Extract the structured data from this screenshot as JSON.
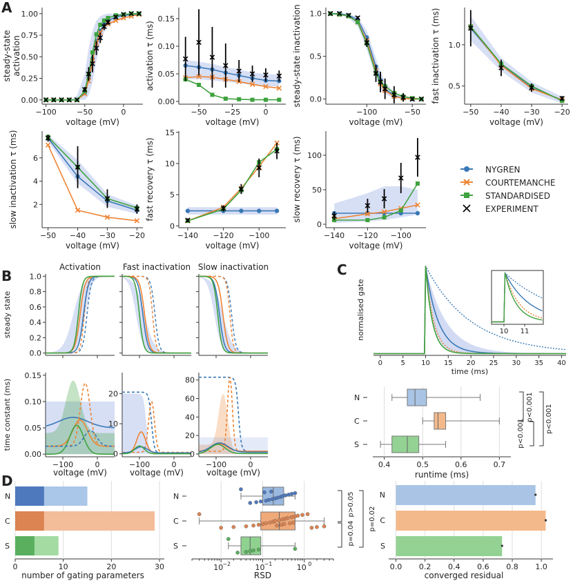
{
  "panel_letters": [
    "A",
    "B",
    "C",
    "D"
  ],
  "colors": {
    "nygren": "#3a78b5",
    "courtemanche": "#ee8434",
    "standardised": "#3ea23e",
    "experiment": "#000000"
  },
  "legend": {
    "items": [
      {
        "label": "NYGREN",
        "marker": "circle",
        "color": "#3a78b5"
      },
      {
        "label": "COURTEMANCHE",
        "marker": "x",
        "color": "#ee8434"
      },
      {
        "label": "STANDARDISED",
        "marker": "square",
        "color": "#3ea23e"
      },
      {
        "label": "EXPERIMENT",
        "marker": "x",
        "color": "#000000"
      }
    ]
  },
  "panelA": [
    {
      "id": "a1",
      "ylabel": "steady-state activation",
      "xlabel": "voltage (mV)",
      "xlim": [
        -105,
        25
      ],
      "ylim": [
        -0.05,
        1.07
      ],
      "xticks": [
        -100,
        -50,
        0
      ],
      "yticks": [
        0.0,
        0.25,
        0.5,
        0.75,
        1.0
      ],
      "ytick_labels": [
        "0.00",
        "0.25",
        "0.50",
        "0.75",
        "1.00"
      ],
      "x": [
        -100,
        -90,
        -80,
        -70,
        -60,
        -50,
        -45,
        -40,
        -35,
        -30,
        -25,
        -20,
        -10,
        0,
        10,
        20
      ],
      "series": {
        "nygren": [
          0.0,
          0.0,
          0.0,
          0.0,
          0.0,
          0.08,
          0.25,
          0.48,
          0.68,
          0.8,
          0.87,
          0.92,
          0.96,
          0.98,
          0.99,
          1.0
        ],
        "courtemanche": [
          0.0,
          0.0,
          0.0,
          0.0,
          0.0,
          0.07,
          0.22,
          0.45,
          0.66,
          0.78,
          0.85,
          0.88,
          0.92,
          0.95,
          0.97,
          0.99
        ],
        "standardised": [
          0.0,
          0.0,
          0.0,
          0.0,
          0.0,
          0.1,
          0.3,
          0.55,
          0.76,
          0.87,
          0.92,
          0.95,
          0.98,
          0.99,
          1.0,
          1.0
        ],
        "experiment": [
          0.0,
          0.0,
          0.0,
          0.0,
          0.0,
          0.12,
          0.3,
          0.42,
          0.6,
          0.72,
          0.85,
          0.9,
          0.96,
          0.99,
          1.0,
          1.0
        ]
      },
      "exp_err": [
        0,
        0,
        0,
        0,
        0,
        0.03,
        0.08,
        0.1,
        0.08,
        0.06,
        0.04,
        0.03,
        0.02,
        0.01,
        0.01,
        0.0
      ],
      "band": {
        "lo": [
          0,
          0,
          0,
          0,
          0,
          0.0,
          0.05,
          0.2,
          0.45,
          0.65,
          0.78,
          0.85,
          0.92,
          0.96,
          0.98,
          0.99
        ],
        "hi": [
          0,
          0,
          0,
          0,
          0.05,
          0.3,
          0.6,
          0.8,
          0.92,
          0.97,
          0.99,
          1.0,
          1.0,
          1.0,
          1.0,
          1.0
        ]
      }
    },
    {
      "id": "a2",
      "ylabel": "activation τ (ms)",
      "xlabel": "voltage (mV)",
      "xlim": [
        -65,
        15
      ],
      "ylim": [
        -0.005,
        0.17
      ],
      "xticks": [
        -50,
        -25,
        0
      ],
      "yticks": [
        0.0,
        0.05,
        0.1,
        0.15
      ],
      "ytick_labels": [
        "0.00",
        "0.05",
        "0.10",
        "0.15"
      ],
      "x": [
        -60,
        -50,
        -40,
        -30,
        -20,
        -10,
        0,
        10
      ],
      "series": {
        "nygren": [
          0.065,
          0.062,
          0.058,
          0.052,
          0.047,
          0.042,
          0.038,
          0.037
        ],
        "courtemanche": [
          0.043,
          0.045,
          0.044,
          0.04,
          0.036,
          0.031,
          0.027,
          0.024
        ],
        "standardised": [
          0.04,
          0.03,
          0.012,
          0.005,
          0.004,
          0.003,
          0.003,
          0.003
        ],
        "experiment": [
          0.077,
          0.107,
          0.08,
          0.065,
          0.055,
          0.05,
          0.048,
          0.046
        ]
      },
      "exp_err": [
        0.04,
        0.06,
        0.055,
        0.04,
        0.02,
        0.015,
        0.012,
        0.01
      ],
      "band": {
        "lo": [
          0.04,
          0.04,
          0.038,
          0.036,
          0.033,
          0.03,
          0.028,
          0.027
        ],
        "hi": [
          0.075,
          0.072,
          0.068,
          0.062,
          0.058,
          0.052,
          0.05,
          0.048
        ]
      }
    },
    {
      "id": "a3",
      "ylabel": "steady-state inactivation",
      "xlabel": "voltage (mV)",
      "xlim": [
        -145,
        -35
      ],
      "ylim": [
        -0.06,
        1.07
      ],
      "xticks": [
        -100,
        -50
      ],
      "yticks": [
        0.0,
        0.5,
        1.0
      ],
      "ytick_labels": [
        "0.0",
        "0.5",
        "1.0"
      ],
      "x": [
        -140,
        -130,
        -120,
        -110,
        -100,
        -90,
        -85,
        -80,
        -70,
        -60,
        -50,
        -40
      ],
      "series": {
        "nygren": [
          1.0,
          1.0,
          0.98,
          0.93,
          0.72,
          0.38,
          0.22,
          0.12,
          0.04,
          0.01,
          0.0,
          0.0
        ],
        "courtemanche": [
          1.0,
          0.99,
          0.97,
          0.9,
          0.68,
          0.33,
          0.18,
          0.1,
          0.03,
          0.01,
          0.0,
          0.0
        ],
        "standardised": [
          1.0,
          0.99,
          0.97,
          0.9,
          0.65,
          0.3,
          0.2,
          0.15,
          0.07,
          0.03,
          0.01,
          0.0
        ],
        "experiment": [
          1.0,
          1.0,
          0.98,
          0.95,
          0.66,
          0.3,
          0.2,
          0.12,
          0.05,
          0.02,
          0.0,
          0.0
        ]
      },
      "exp_err": [
        0,
        0,
        0.01,
        0.02,
        0.05,
        0.1,
        0.12,
        0.12,
        0.1,
        0.05,
        0.02,
        0.0
      ],
      "band": {
        "lo": [
          1.0,
          0.99,
          0.95,
          0.85,
          0.58,
          0.25,
          0.12,
          0.06,
          0.01,
          0.0,
          0.0,
          0.0
        ],
        "hi": [
          1.0,
          1.0,
          0.99,
          0.96,
          0.8,
          0.48,
          0.32,
          0.2,
          0.08,
          0.03,
          0.01,
          0.0
        ]
      }
    },
    {
      "id": "a4",
      "ylabel": "fast inactivation τ (ms)",
      "xlabel": "voltage (mV)",
      "xlim": [
        -52,
        -18
      ],
      "ylim": [
        0.28,
        1.45
      ],
      "xticks": [
        -50,
        -40,
        -30,
        -20
      ],
      "yticks": [
        0.5,
        1.0
      ],
      "ytick_labels": [
        "0.5",
        "1.0"
      ],
      "x": [
        -50,
        -40,
        -30,
        -20
      ],
      "series": {
        "nygren": [
          1.2,
          0.76,
          0.48,
          0.33
        ],
        "courtemanche": [
          1.22,
          0.75,
          0.47,
          0.33
        ],
        "standardised": [
          1.22,
          0.77,
          0.5,
          0.32
        ],
        "experiment": [
          1.2,
          0.72,
          0.48,
          0.35
        ]
      },
      "exp_err": [
        0.22,
        0.1,
        0.05,
        0.03
      ],
      "band": {
        "lo": [
          1.05,
          0.68,
          0.42,
          0.29
        ],
        "hi": [
          1.35,
          0.84,
          0.55,
          0.37
        ]
      }
    },
    {
      "id": "a5",
      "ylabel": "slow inactivation τ (ms)",
      "xlabel": "voltage (mV)",
      "xlim": [
        -52,
        -18
      ],
      "ylim": [
        0.0,
        8.3
      ],
      "xticks": [
        -50,
        -40,
        -30,
        -20
      ],
      "yticks": [
        2,
        4,
        6
      ],
      "ytick_labels": [
        "2",
        "4",
        "6"
      ],
      "x": [
        -50,
        -40,
        -30,
        -20
      ],
      "series": {
        "nygren": [
          7.7,
          4.4,
          2.3,
          1.5
        ],
        "courtemanche": [
          7.1,
          1.5,
          0.9,
          0.6
        ],
        "standardised": [
          7.8,
          5.2,
          2.5,
          1.7
        ],
        "experiment": [
          7.7,
          5.2,
          2.5,
          1.6
        ]
      },
      "exp_err": [
        0.3,
        1.8,
        0.8,
        0.4
      ],
      "band": {
        "lo": [
          7.4,
          3.8,
          1.8,
          1.2
        ],
        "hi": [
          8.0,
          5.8,
          2.9,
          1.9
        ]
      }
    },
    {
      "id": "a6",
      "ylabel": "fast recovery τ (ms)",
      "xlabel": "voltage (mV)",
      "xlim": [
        -145,
        -85
      ],
      "ylim": [
        -0.3,
        15.2
      ],
      "xticks": [
        -140,
        -120,
        -100
      ],
      "yticks": [
        0,
        5,
        10,
        15
      ],
      "ytick_labels": [
        "0",
        "5",
        "10",
        "15"
      ],
      "x": [
        -140,
        -120,
        -110,
        -100,
        -90
      ],
      "series": {
        "nygren": [
          2.4,
          2.4,
          2.4,
          2.4,
          2.4
        ],
        "courtemanche": [
          0.8,
          3.0,
          6.0,
          9.5,
          13.3
        ],
        "standardised": [
          0.8,
          2.7,
          5.7,
          10.2,
          12.3
        ],
        "experiment": [
          0.9,
          2.8,
          5.9,
          9.3,
          12.0
        ]
      },
      "exp_err": [
        0.3,
        0.5,
        0.8,
        1.5,
        1.3
      ],
      "band": {
        "lo": [
          1.8,
          1.8,
          1.8,
          1.8,
          1.8
        ],
        "hi": [
          3.0,
          3.0,
          3.0,
          3.0,
          3.0
        ]
      }
    },
    {
      "id": "a7",
      "ylabel": "slow recovery τ (ms)",
      "xlabel": "voltage (mV)",
      "xlim": [
        -145,
        -85
      ],
      "ylim": [
        -5,
        135
      ],
      "xticks": [
        -140,
        -120,
        -100
      ],
      "yticks": [
        0,
        50,
        100
      ],
      "ytick_labels": [
        "0",
        "50",
        "100"
      ],
      "x": [
        -140,
        -120,
        -110,
        -100,
        -90
      ],
      "series": {
        "nygren": [
          16,
          16,
          16,
          16,
          16
        ],
        "courtemanche": [
          8,
          15,
          18,
          23,
          28
        ],
        "standardised": [
          6,
          6,
          10,
          20,
          59
        ],
        "experiment": [
          12,
          27,
          37,
          67,
          97
        ]
      },
      "exp_err": [
        6,
        10,
        14,
        22,
        28
      ],
      "band": {
        "lo": [
          2,
          4,
          6,
          10,
          14
        ],
        "hi": [
          30,
          45,
          55,
          55,
          50
        ]
      }
    }
  ],
  "panelB": {
    "titles": [
      "Activation",
      "Fast inactivation",
      "Slow inactivation"
    ],
    "top_ylabel": "steady state",
    "bottom_ylabel": "time constant (ms)",
    "xlabel": "voltage (mV)",
    "xticks": [
      -100,
      0
    ],
    "xlim": [
      -150,
      50
    ],
    "top_yticks": [
      0.0,
      0.2,
      0.4,
      0.6,
      0.8,
      1.0
    ],
    "top_ytick_labels": [
      "0.0",
      "0.2",
      "0.4",
      "0.6",
      "0.8",
      "1.0"
    ],
    "bottom": [
      {
        "ylim": [
          -0.005,
          0.155
        ],
        "yticks": [
          0.0,
          0.05,
          0.1,
          0.15
        ],
        "ytick_labels": [
          "0.00",
          "0.05",
          "0.10",
          "0.15"
        ]
      },
      {
        "ylim": [
          -1,
          27
        ],
        "yticks": [
          0,
          10,
          20
        ],
        "ytick_labels": [
          "0",
          "10",
          "20"
        ]
      },
      {
        "ylim": [
          -3,
          88
        ],
        "yticks": [
          0,
          20,
          40,
          60,
          80
        ],
        "ytick_labels": [
          "0",
          "20",
          "40",
          "60",
          "80"
        ]
      }
    ],
    "steady_state_v_half": [
      {
        "nygren": -40,
        "courtemanche": -50,
        "standardised": -55,
        "courtemanche_dashed": -38,
        "nygren_dashed": -30
      },
      {
        "nygren": -90,
        "courtemanche": -85,
        "standardised": -100,
        "courtemanche_dashed": -62,
        "nygren_dashed": -55
      },
      {
        "nygren": -90,
        "courtemanche": -80,
        "standardised": -95,
        "courtemanche_dashed": -60,
        "nygren_dashed": -55
      }
    ]
  },
  "panelC": {
    "top": {
      "ylabel": "normalised gate",
      "xlabel": "time (ms)",
      "xlim": [
        -1.5,
        41
      ],
      "ylim": [
        -0.02,
        1.02
      ],
      "xticks": [
        0,
        5,
        10,
        15,
        20,
        25,
        30,
        35,
        40
      ],
      "inset": {
        "xticks": [
          10,
          11
        ],
        "xlim": [
          9.4,
          11.9
        ]
      }
    },
    "box": {
      "xlabel": "runtime (ms)",
      "xlim": [
        0.37,
        0.73
      ],
      "xticks": [
        0.4,
        0.5,
        0.6,
        0.7
      ],
      "xtick_labels": [
        "0.4",
        "0.5",
        "0.6",
        "0.7"
      ],
      "rows": [
        {
          "label": "N",
          "whisker_lo": 0.42,
          "q1": 0.46,
          "median": 0.48,
          "q3": 0.51,
          "whisker_hi": 0.65,
          "color": "#a9c4e4"
        },
        {
          "label": "C",
          "whisker_lo": 0.5,
          "q1": 0.53,
          "median": 0.54,
          "q3": 0.56,
          "whisker_hi": 0.7,
          "color": "#f4b98b"
        },
        {
          "label": "S",
          "whisker_lo": 0.39,
          "q1": 0.42,
          "median": 0.46,
          "q3": 0.49,
          "whisker_hi": 0.56,
          "color": "#93d293"
        }
      ],
      "significance": [
        "p<0.001",
        "p<0.001",
        "p<0.001"
      ]
    }
  },
  "panelD": {
    "params": {
      "xlabel": "number of gating parameters",
      "xlim": [
        0,
        31
      ],
      "xticks": [
        0,
        10,
        20,
        30
      ],
      "rows": [
        {
          "label": "N",
          "dark": 6,
          "total": 15,
          "dark_color": "#4f79bd",
          "light_color": "#aac6e8"
        },
        {
          "label": "C",
          "dark": 6,
          "total": 29,
          "dark_color": "#dc8452",
          "light_color": "#f3bd9a"
        },
        {
          "label": "S",
          "dark": 4,
          "total": 9,
          "dark_color": "#5aaf5e",
          "light_color": "#a3dba3"
        }
      ]
    },
    "rsd": {
      "xlabel": "RSD",
      "xlim_log": [
        -2.7,
        0.7
      ],
      "xtick_exp": [
        -2,
        -1,
        0
      ],
      "xtick_labels": [
        "10",
        "10",
        "10"
      ],
      "xtick_sup": [
        "−2",
        "−1",
        "0"
      ],
      "rows": [
        {
          "label": "N",
          "whisker_lo": 0.03,
          "q1": 0.1,
          "median": 0.18,
          "q3": 0.32,
          "whisker_hi": 0.6,
          "color": "#9bb9e0",
          "dot": "#4f79bd",
          "points": [
            0.03,
            0.05,
            0.07,
            0.09,
            0.12,
            0.14,
            0.17,
            0.2,
            0.23,
            0.27,
            0.3,
            0.35,
            0.42,
            0.5,
            0.6,
            0.11,
            0.16
          ]
        },
        {
          "label": "C",
          "whisker_lo": 0.003,
          "q1": 0.09,
          "median": 0.25,
          "q3": 0.6,
          "whisker_hi": 3.0,
          "color": "#f0a978",
          "dot": "#dc8452",
          "points": [
            0.003,
            0.01,
            0.02,
            0.04,
            0.06,
            0.08,
            0.1,
            0.12,
            0.15,
            0.18,
            0.2,
            0.25,
            0.3,
            0.35,
            0.4,
            0.5,
            0.6,
            0.7,
            0.9,
            1.2,
            1.5,
            2.0,
            3.0,
            0.22,
            0.28,
            0.33,
            0.45,
            0.55
          ]
        },
        {
          "label": "S",
          "whisker_lo": 0.015,
          "q1": 0.03,
          "median": 0.05,
          "q3": 0.09,
          "whisker_hi": 0.6,
          "color": "#8fd18f",
          "dot": "#5aaf5e",
          "points": [
            0.015,
            0.025,
            0.04,
            0.05,
            0.06,
            0.08,
            0.6
          ]
        }
      ],
      "significance": [
        "p>0.05",
        "p=0.04",
        "p=0.02"
      ]
    },
    "residual": {
      "xlabel": "converged residual",
      "xlim": [
        -0.05,
        1.08
      ],
      "xticks": [
        0.0,
        0.2,
        0.4,
        0.6,
        0.8,
        1.0
      ],
      "xtick_labels": [
        "0.0",
        "0.2",
        "0.4",
        "0.6",
        "0.8",
        "1.0"
      ],
      "rows": [
        {
          "label": "N",
          "value": 0.96,
          "color": "#a9c4e4"
        },
        {
          "label": "C",
          "value": 1.03,
          "color": "#f4b98b"
        },
        {
          "label": "S",
          "value": 0.73,
          "color": "#93d293"
        }
      ]
    }
  }
}
